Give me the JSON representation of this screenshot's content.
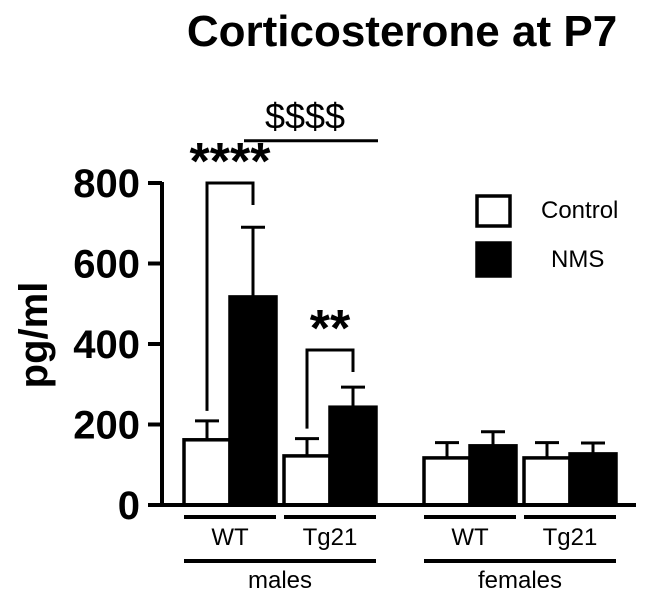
{
  "chart_data": {
    "type": "bar",
    "title": "Corticosterone at P7",
    "ylabel": "pg/ml",
    "xlabel": "",
    "ylim": [
      0,
      800
    ],
    "yticks": [
      0,
      200,
      400,
      600,
      800
    ],
    "ytick_labels": [
      "0",
      "200",
      "400",
      "600",
      "800"
    ],
    "groups": [
      {
        "sex": "males",
        "genotype": "WT"
      },
      {
        "sex": "males",
        "genotype": "Tg21"
      },
      {
        "sex": "females",
        "genotype": "WT"
      },
      {
        "sex": "females",
        "genotype": "Tg21"
      }
    ],
    "sex_labels": [
      "males",
      "females"
    ],
    "genotype_labels": [
      "WT",
      "Tg21",
      "WT",
      "Tg21"
    ],
    "series": [
      {
        "name": "Control",
        "color": "#ffffff",
        "values": [
          162,
          122,
          117,
          117
        ],
        "errors": [
          47,
          43,
          38,
          38
        ]
      },
      {
        "name": "NMS",
        "color": "#000000",
        "values": [
          517,
          243,
          147,
          127
        ],
        "errors": [
          173,
          50,
          35,
          27
        ]
      }
    ],
    "legend_position": "top-right",
    "annotations": [
      {
        "text": "****",
        "type": "bracket",
        "group": 0,
        "y": 800
      },
      {
        "text": "**",
        "type": "bracket",
        "group": 1,
        "y": 385
      },
      {
        "text": "$$$$",
        "type": "line",
        "from_group": 0,
        "to_group": 1,
        "y": 905
      }
    ]
  }
}
